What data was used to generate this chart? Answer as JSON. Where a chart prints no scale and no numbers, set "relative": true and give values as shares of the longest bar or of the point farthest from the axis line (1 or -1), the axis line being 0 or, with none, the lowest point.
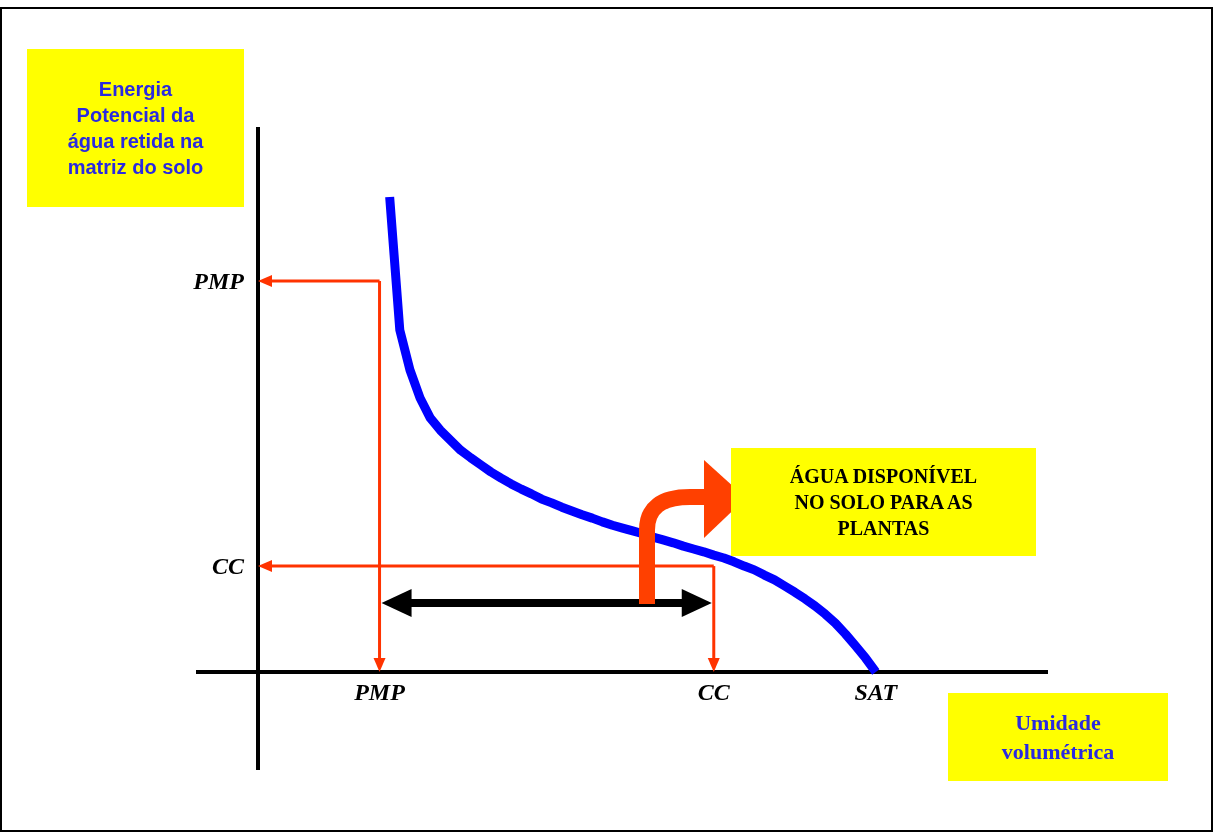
{
  "chart_data": {
    "type": "line",
    "relative": true,
    "ylabel": "Energia Potencial da água retida na matriz do solo",
    "xlabel": "Umidade volumétrica",
    "categories": [
      null,
      null,
      null,
      null,
      null,
      null,
      null,
      null,
      null,
      null,
      null,
      null,
      "PMP",
      null,
      null,
      null,
      null,
      null,
      null,
      null,
      null,
      null,
      null,
      null,
      null,
      null,
      null,
      null,
      null,
      null,
      null,
      null,
      null,
      null,
      null,
      null,
      null,
      null,
      null,
      null,
      null,
      null,
      null,
      null,
      null,
      "CC",
      null,
      null,
      null,
      null,
      null,
      null,
      null,
      null,
      null,
      null,
      null,
      null,
      null,
      null,
      null,
      "SAT",
      null,
      null,
      null,
      null,
      null,
      null,
      null,
      null,
      null,
      null,
      null,
      null,
      null,
      null,
      null,
      null,
      null
    ],
    "series": [
      {
        "color": "#0000ff",
        "values": [
          null,
          null,
          null,
          null,
          null,
          null,
          null,
          null,
          null,
          null,
          null,
          null,
          null,
          1.0,
          0.72,
          0.636,
          0.577,
          0.535,
          0.509,
          0.488,
          0.467,
          0.451,
          0.436,
          0.421,
          0.408,
          0.396,
          0.385,
          0.375,
          0.364,
          0.356,
          0.347,
          0.339,
          0.331,
          0.324,
          0.316,
          0.309,
          0.303,
          0.297,
          0.291,
          0.284,
          0.278,
          0.272,
          0.265,
          0.259,
          0.253,
          0.246,
          0.24,
          0.232,
          0.223,
          0.215,
          0.204,
          0.194,
          0.181,
          0.168,
          0.154,
          0.139,
          0.122,
          0.103,
          0.08,
          0.055,
          0.029,
          0,
          null,
          null,
          null,
          null,
          null,
          null,
          null,
          null,
          null,
          null,
          null,
          null,
          null,
          null,
          null,
          null,
          null
        ]
      }
    ],
    "ref_lines": [
      {
        "axis": "y",
        "value": 0.823,
        "label": "PMP",
        "color": "#ff3300"
      },
      {
        "axis": "y",
        "value": 0.223,
        "label": "CC",
        "color": "#ff3300"
      },
      {
        "axis": "x",
        "value": "PMP",
        "color": "#ff3300"
      },
      {
        "axis": "x",
        "value": "CC",
        "color": "#ff3300"
      }
    ],
    "annotations": [
      "ÁGUA DISPONÍVEL NO SOLO PARA AS PLANTAS"
    ]
  }
}
